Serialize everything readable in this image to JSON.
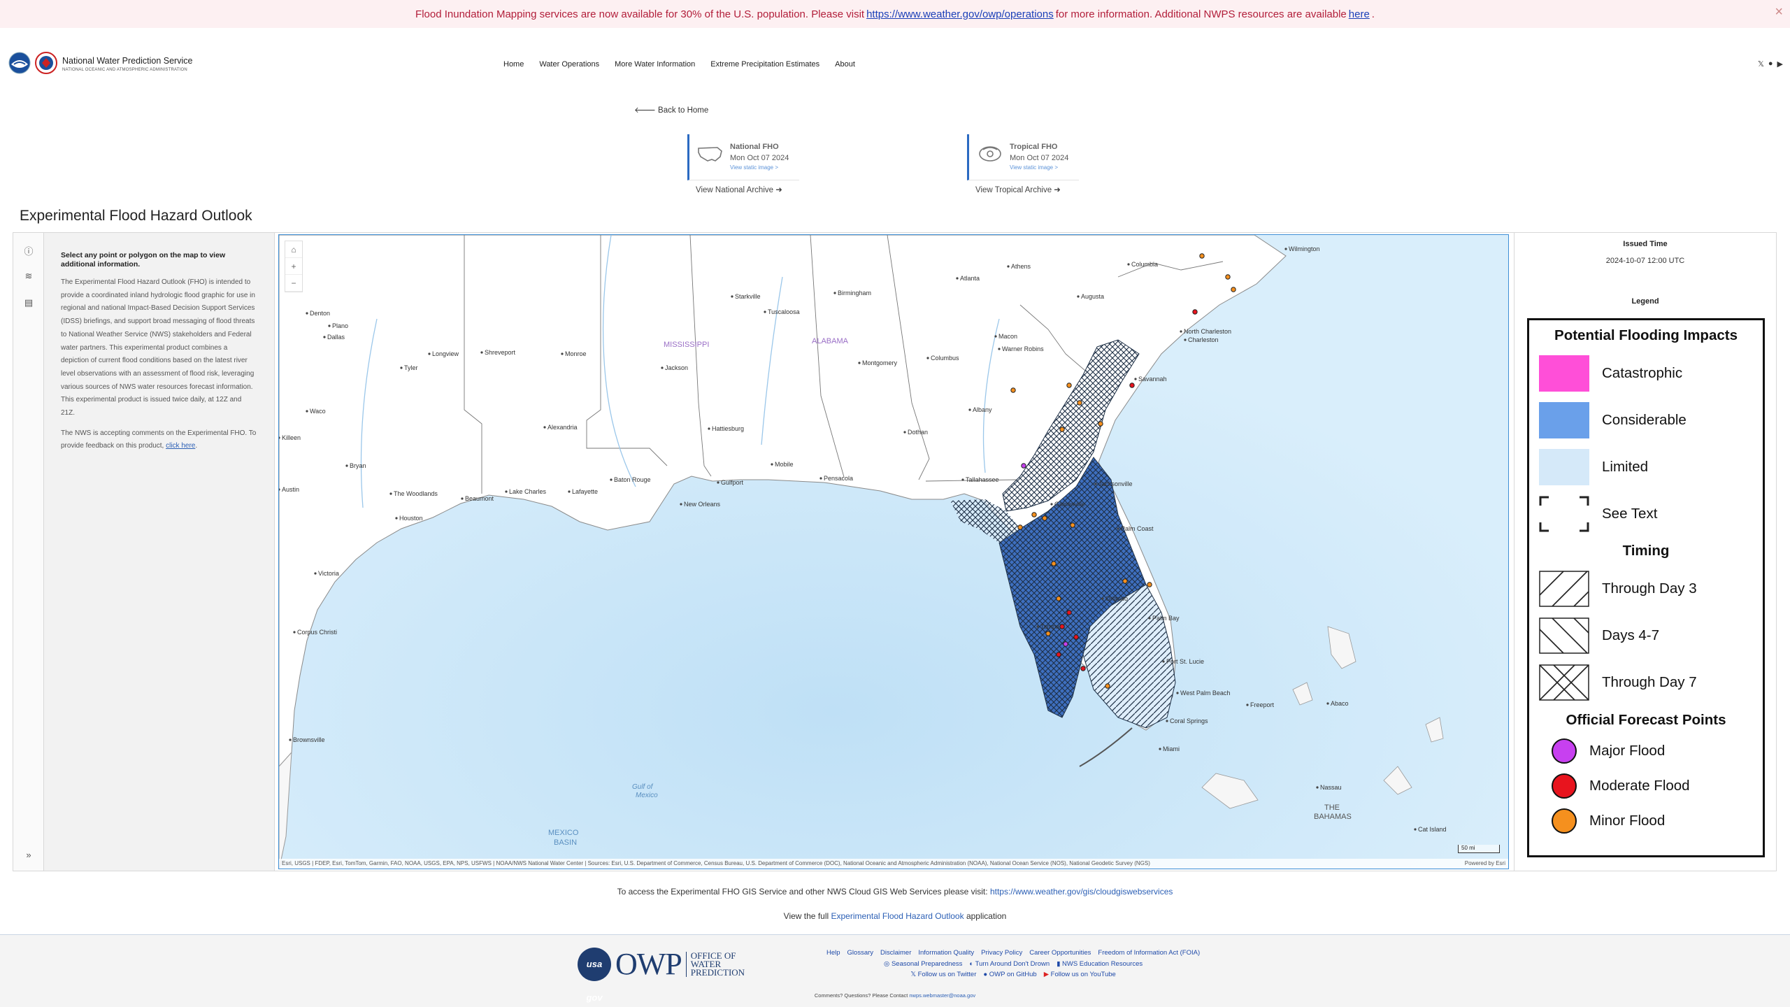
{
  "alert": {
    "text1": "Flood Inundation Mapping services are now available for 30% of the U.S. population. Please visit",
    "link1": "https://www.weather.gov/owp/operations",
    "text2": "for more information. Additional NWPS resources are available",
    "link2": "here",
    "text3": "."
  },
  "header": {
    "brand_name": "National Water Prediction Service",
    "brand_sub": "NATIONAL OCEANIC AND ATMOSPHERIC ADMINISTRATION",
    "nav": [
      "Home",
      "Water Operations",
      "More Water Information",
      "Extreme Precipitation Estimates",
      "About"
    ]
  },
  "back_home": "Back to Home",
  "cards": [
    {
      "title": "National FHO",
      "date": "Mon Oct 07 2024",
      "link": "View static image >",
      "archive": "View National Archive"
    },
    {
      "title": "Tropical FHO",
      "date": "Mon Oct 07 2024",
      "link": "View static image >",
      "archive": "View Tropical Archive"
    }
  ],
  "page_title": "Experimental Flood Hazard Outlook",
  "info": {
    "heading": "Select any point or polygon on the map to view additional information.",
    "para1": "The Experimental Flood Hazard Outlook (FHO) is intended to provide a coordinated inland hydrologic flood graphic for use in regional and national Impact-Based Decision Support Services (IDSS) briefings, and support broad messaging of flood threats to National Weather Service (NWS) stakeholders and Federal water partners.  This experimental product combines a depiction of current flood conditions based on the latest river level observations with an assessment of flood risk, leveraging various sources of NWS water resources forecast information.  This experimental product is issued twice daily, at 12Z and 21Z.",
    "para2": "The NWS is accepting comments on the Experimental FHO. To provide feedback on this product,",
    "link": "click here",
    "para2_end": "."
  },
  "map": {
    "labels": {
      "mississippi": "MISSISSIPPI",
      "alabama": "ALABAMA",
      "gulf": "Gulf of\nMexico",
      "mexico_basin": "MEXICO\nBASIN",
      "bahamas": "THE\nBAHAMAS",
      "cities": [
        "Denton",
        "Plano",
        "Dallas",
        "Tyler",
        "Longview",
        "Shreveport",
        "Monroe",
        "Jackson",
        "Starkville",
        "Tuscaloosa",
        "Birmingham",
        "Atlanta",
        "Athens",
        "Augusta",
        "Columbia",
        "Wilmington",
        "Montgomery",
        "Columbus",
        "Macon",
        "Warner Robins",
        "Albany",
        "Dothan",
        "Tallahassee",
        "Jacksonville",
        "Palm Coast",
        "Gainesville",
        "Orlando",
        "Tampa",
        "Palm Bay",
        "Port St. Lucie",
        "West Palm Beach",
        "Coral Springs",
        "Miami",
        "Freeport",
        "Nassau",
        "Abaco",
        "Cat Island",
        "Mobile",
        "Pensacola",
        "Gulfport",
        "Hattiesburg",
        "Baton Rouge",
        "Lafayette",
        "Lake Charles",
        "Beaumont",
        "Houston",
        "The Woodlands",
        "Alexandria",
        "Waco",
        "Killeen",
        "Bryan",
        "Austin",
        "Victoria",
        "Corpus Christi",
        "Brownsville",
        "North Charleston",
        "Charleston",
        "Savannah",
        "New Orleans"
      ]
    },
    "attribution": "Esri, USGS | FDEP, Esri, TomTom, Garmin, FAO, NOAA, USGS, EPA, NPS, USFWS | NOAA/NWS National Water Center | Sources: Esri, U.S. Department of Commerce, Census Bureau, U.S. Department of Commerce (DOC), National Oceanic and Atmospheric Administration (NOAA), National Ocean Service (NOS), National Geodetic Survey (NGS)",
    "powered": "Powered by Esri",
    "scale": "50 mi"
  },
  "legend": {
    "issued_label": "Issued Time",
    "issued_value": "2024-10-07 12:00 UTC",
    "legend_label": "Legend",
    "impacts_heading": "Potential Flooding Impacts",
    "impacts": [
      {
        "label": "Catastrophic",
        "color": "#ff4fd8"
      },
      {
        "label": "Considerable",
        "color": "#6aa0ea"
      },
      {
        "label": "Limited",
        "color": "#d5e9f9"
      },
      {
        "label": "See Text",
        "color": "none"
      }
    ],
    "timing_heading": "Timing",
    "timing": [
      "Through Day 3",
      "Days 4-7",
      "Through Day 7"
    ],
    "points_heading": "Official Forecast Points",
    "points": [
      {
        "label": "Major Flood",
        "color": "#c740f0"
      },
      {
        "label": "Moderate Flood",
        "color": "#e8141e"
      },
      {
        "label": "Minor Flood",
        "color": "#f5901e"
      }
    ]
  },
  "notes": {
    "gis_text": "To access the Experimental FHO GIS Service and other NWS Cloud GIS Web Services please visit:",
    "gis_link": "https://www.weather.gov/gis/cloudgiswebservices",
    "app_pre": "View the full",
    "app_link": "Experimental Flood Hazard Outlook",
    "app_post": "application"
  },
  "footer": {
    "usagov": "usa gov",
    "owp": "OWP",
    "owp_sub1": "OFFICE OF",
    "owp_sub2": "WATER",
    "owp_sub3": "PREDICTION",
    "row1": [
      "Help",
      "Glossary",
      "Disclaimer",
      "Information Quality",
      "Privacy Policy",
      "Career Opportunities",
      "Freedom of Information Act (FOIA)"
    ],
    "row2": [
      "Seasonal Preparedness",
      "Turn Around Don't Drown",
      "NWS Education Resources"
    ],
    "row3": [
      "Follow us on Twitter",
      "OWP on GitHub",
      "Follow us on YouTube"
    ],
    "contact_text": "Comments? Questions? Please Contact",
    "contact_email": "nwps.webmaster@noaa.gov"
  }
}
